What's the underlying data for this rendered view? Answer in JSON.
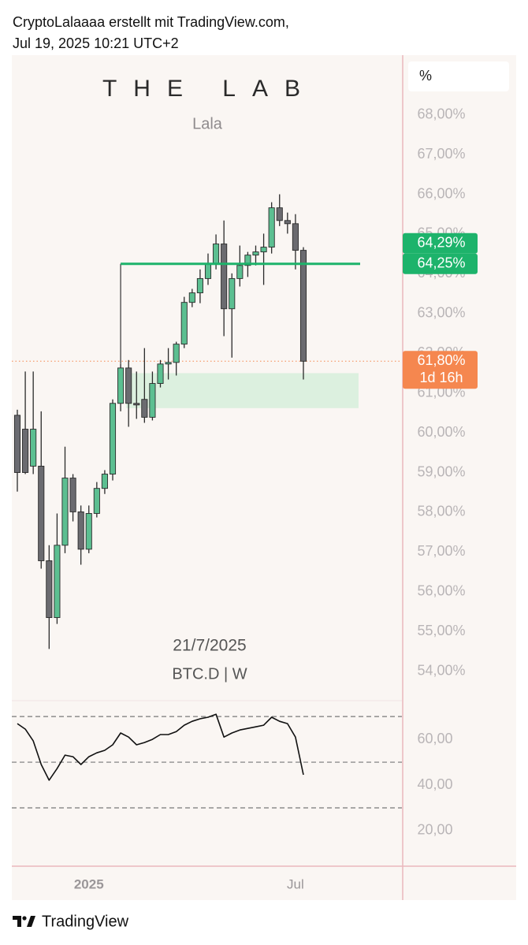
{
  "header": {
    "line1": "CryptoLalaaaa erstellt mit TradingView.com,",
    "line2": "Jul 19, 2025 10:21 UTC+2"
  },
  "footer": {
    "brand": "TradingView"
  },
  "chart_data": [
    {
      "type": "candlestick",
      "title": "THE LAB",
      "subtitle": "Lala",
      "annotations": [
        "21/7/2025",
        "BTC.D | W"
      ],
      "axis_unit": "%",
      "categories": [
        null,
        null,
        null,
        null,
        null,
        null,
        null,
        null,
        null,
        "2025",
        null,
        null,
        null,
        null,
        null,
        null,
        null,
        null,
        null,
        null,
        null,
        null,
        null,
        null,
        null,
        null,
        null,
        null,
        null,
        null,
        null,
        null,
        null,
        null,
        null,
        "Jul",
        null
      ],
      "open": [
        60.44,
        60.09,
        59.16,
        59.16,
        56.78,
        55.35,
        57.17,
        58.86,
        58.01,
        57.07,
        57.97,
        58.6,
        58.96,
        60.74,
        61.63,
        60.74,
        60.84,
        60.39,
        61.24,
        61.73,
        61.77,
        62.23,
        63.28,
        63.52,
        63.88,
        64.25,
        64.75,
        63.12,
        63.88,
        64.21,
        64.47,
        64.55,
        64.67,
        65.66,
        65.34,
        65.26,
        64.59
      ],
      "high": [
        60.58,
        61.54,
        61.54,
        60.54,
        57.17,
        57.97,
        59.65,
        58.96,
        58.17,
        58.17,
        58.76,
        59.06,
        60.84,
        61.73,
        61.83,
        61.54,
        62.13,
        61.54,
        61.83,
        62.13,
        62.29,
        63.42,
        63.62,
        64.11,
        64.51,
        64.99,
        65.34,
        64.01,
        64.71,
        64.55,
        64.71,
        65.01,
        65.8,
        66.0,
        65.54,
        65.5,
        64.67
      ],
      "low": [
        58.52,
        58.96,
        58.96,
        56.58,
        54.56,
        55.19,
        56.97,
        57.77,
        56.68,
        56.97,
        57.87,
        58.46,
        58.8,
        60.54,
        60.15,
        60.35,
        60.25,
        60.31,
        61.14,
        61.34,
        61.44,
        62.13,
        63.16,
        63.26,
        63.72,
        64.11,
        62.43,
        61.89,
        63.68,
        63.92,
        64.21,
        63.72,
        64.51,
        65.2,
        65.01,
        64.11,
        61.34
      ],
      "close": [
        59.0,
        59.0,
        60.09,
        56.78,
        55.35,
        57.17,
        58.86,
        58.01,
        57.07,
        57.97,
        58.6,
        58.96,
        60.74,
        61.63,
        60.74,
        60.7,
        60.39,
        61.24,
        61.73,
        61.77,
        62.23,
        63.28,
        63.52,
        63.88,
        64.25,
        64.75,
        63.12,
        63.88,
        64.21,
        64.47,
        64.55,
        64.67,
        65.66,
        65.34,
        65.26,
        64.59,
        61.8
      ],
      "up_color": "#5cbf91",
      "down_color": "#6b6b70",
      "ylim": [
        53.2,
        69.5
      ],
      "yticks": [
        {
          "value": 68,
          "label": "68,00%"
        },
        {
          "value": 67,
          "label": "67,00%"
        },
        {
          "value": 66,
          "label": "66,00%"
        },
        {
          "value": 65,
          "label": "65,00%"
        },
        {
          "value": 64,
          "label": "64,00%"
        },
        {
          "value": 63,
          "label": "63,00%"
        },
        {
          "value": 62,
          "label": "62,00%"
        },
        {
          "value": 61,
          "label": "61,00%"
        },
        {
          "value": 60,
          "label": "60,00%"
        },
        {
          "value": 59,
          "label": "59,00%"
        },
        {
          "value": 58,
          "label": "58,00%"
        },
        {
          "value": 57,
          "label": "57,00%"
        },
        {
          "value": 56,
          "label": "56,00%"
        },
        {
          "value": 55,
          "label": "55,00%"
        },
        {
          "value": 54,
          "label": "54,00%"
        }
      ],
      "level": {
        "value": 64.25,
        "color": "#1db36b"
      },
      "zone": {
        "top": 61.5,
        "bottom": 60.62,
        "color": "#d6eedb"
      },
      "price_tags": [
        {
          "value": 64.29,
          "label": "64,29%",
          "color": "#1db36b"
        },
        {
          "value": 64.25,
          "label": "64,25%",
          "color": "#1db36b"
        },
        {
          "value": 61.8,
          "label": "61,80%",
          "sublabel": "1d 16h",
          "color": "#f5874f"
        }
      ]
    },
    {
      "type": "line",
      "values": [
        66.9,
        64.5,
        59.3,
        49.0,
        42.1,
        47.2,
        53.1,
        52.4,
        49.0,
        52.4,
        54.1,
        55.2,
        57.6,
        62.8,
        61.0,
        57.6,
        58.6,
        60.0,
        62.1,
        62.1,
        63.4,
        66.2,
        67.9,
        69.0,
        69.7,
        71.0,
        61.0,
        62.8,
        64.1,
        64.8,
        65.5,
        66.2,
        69.7,
        67.9,
        66.9,
        61.0,
        44.5
      ],
      "color": "#111111",
      "ylim": [
        4.8,
        76.6
      ],
      "yticks": [
        {
          "value": 60,
          "label": "60,00"
        },
        {
          "value": 40,
          "label": "40,00"
        },
        {
          "value": 20,
          "label": "20,00"
        }
      ],
      "bands": [
        70,
        50,
        30
      ]
    }
  ]
}
